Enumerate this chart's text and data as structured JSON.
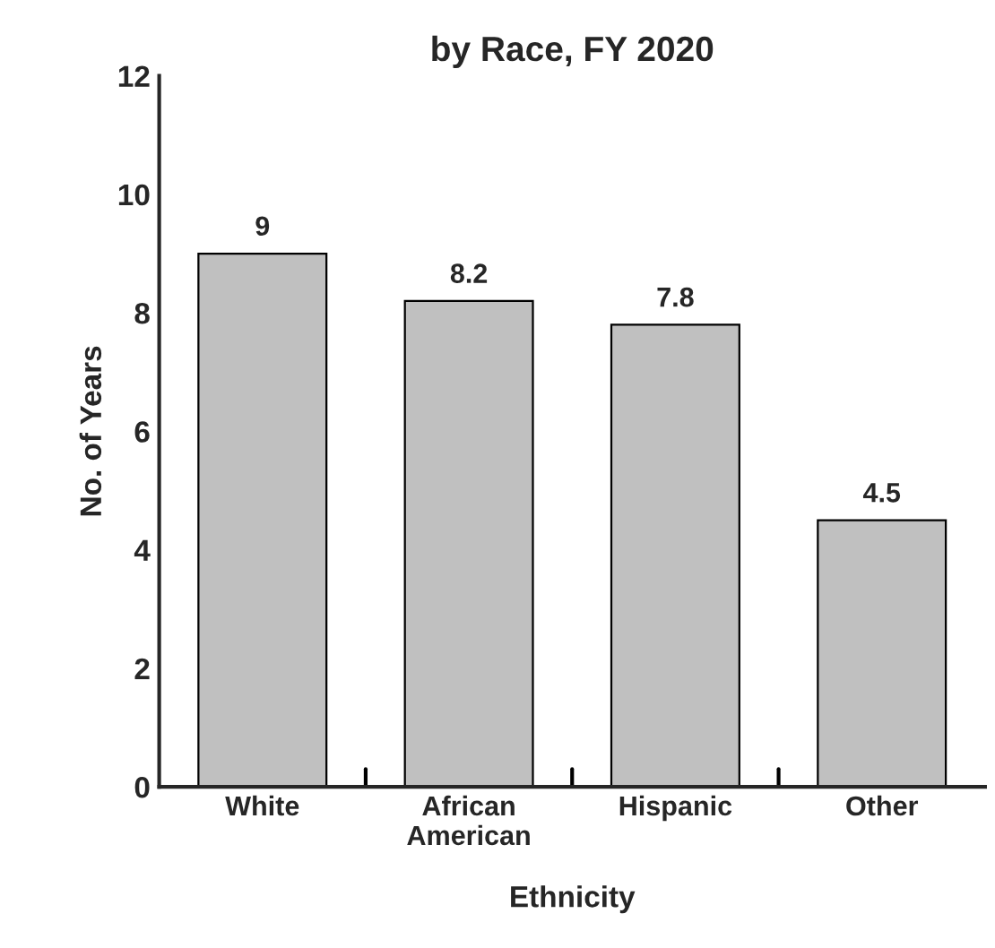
{
  "chart_data": {
    "type": "bar",
    "title": "by Race, FY 2020",
    "xlabel": "Ethnicity",
    "ylabel": "No. of Years",
    "categories": [
      "White",
      "African\nAmerican",
      "Hispanic",
      "Other"
    ],
    "values": [
      9,
      8.2,
      7.8,
      4.5
    ],
    "color": "#c0c0c0",
    "data_labels": true,
    "ylim": [
      0,
      12
    ],
    "yticks": [
      0,
      2,
      4,
      6,
      8,
      10,
      12
    ],
    "grid": false
  }
}
